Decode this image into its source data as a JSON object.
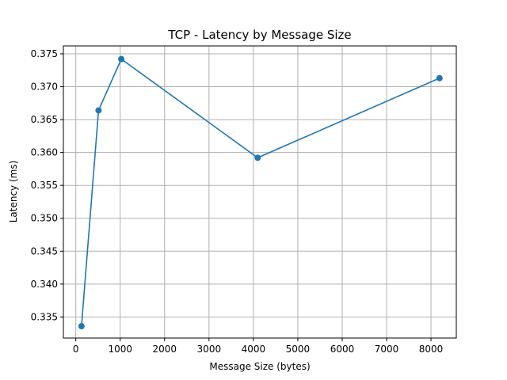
{
  "chart_data": {
    "type": "line",
    "title": "TCP - Latency by Message Size",
    "xlabel": "Message Size (bytes)",
    "ylabel": "Latency (ms)",
    "xlim": [
      -280,
      8570
    ],
    "ylim": [
      0.3318,
      0.3762
    ],
    "x_ticks": [
      0,
      1000,
      2000,
      3000,
      4000,
      5000,
      6000,
      7000,
      8000
    ],
    "y_ticks": [
      0.335,
      0.34,
      0.345,
      0.35,
      0.355,
      0.36,
      0.365,
      0.37,
      0.375
    ],
    "x_tick_labels": [
      "0",
      "1000",
      "2000",
      "3000",
      "4000",
      "5000",
      "6000",
      "7000",
      "8000"
    ],
    "y_tick_labels": [
      "0.335",
      "0.340",
      "0.345",
      "0.350",
      "0.355",
      "0.360",
      "0.365",
      "0.370",
      "0.375"
    ],
    "grid": true,
    "marker": "circle",
    "series": [
      {
        "x": [
          128,
          512,
          1024,
          4096,
          8192
        ],
        "values": [
          0.3336,
          0.3664,
          0.3742,
          0.3592,
          0.3713
        ],
        "color": "#1f77b4"
      }
    ]
  }
}
